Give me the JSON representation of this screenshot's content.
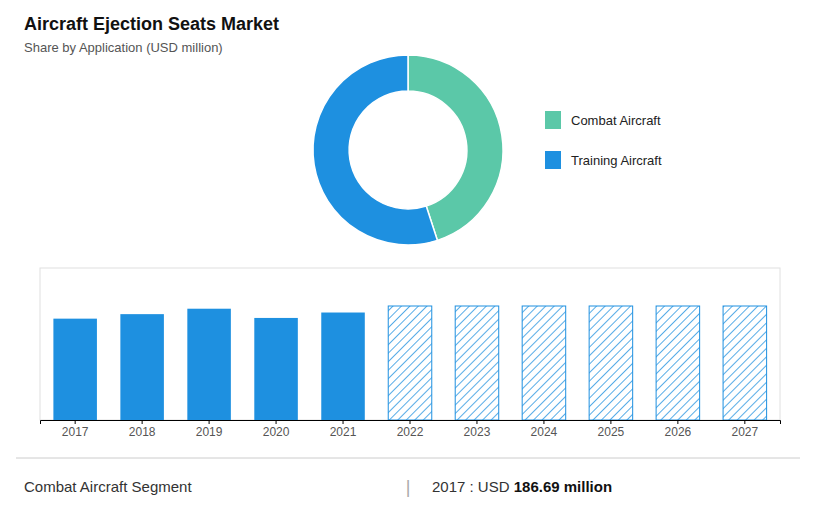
{
  "chart_data": [
    {
      "type": "donut",
      "title": "Aircraft Ejection Seats Market",
      "subtitle": "Share by Application (USD million)",
      "categories": [
        "Combat Aircraft",
        "Training Aircraft"
      ],
      "values": [
        45,
        55
      ],
      "colors": [
        "#5BC8A8",
        "#1E90E0"
      ],
      "legend": "right"
    },
    {
      "type": "bar",
      "categories": [
        2017,
        2018,
        2019,
        2020,
        2021,
        2022,
        2023,
        2024,
        2025,
        2026,
        2027
      ],
      "series": [
        {
          "color": "#1E90E0",
          "values": [
            186.69,
            195,
            205,
            188,
            198,
            null,
            null,
            null,
            null,
            null,
            null
          ]
        },
        {
          "color": "#1E90E0",
          "values": [
            null,
            null,
            null,
            null,
            null,
            210,
            210,
            210,
            210,
            210,
            210
          ]
        }
      ],
      "ylim": [
        0,
        280
      ],
      "grid": false,
      "tick_labels": "x",
      "annotations": [
        "Combat Aircraft Segment",
        "|",
        "2017 : USD ",
        "186.69 million"
      ]
    }
  ]
}
